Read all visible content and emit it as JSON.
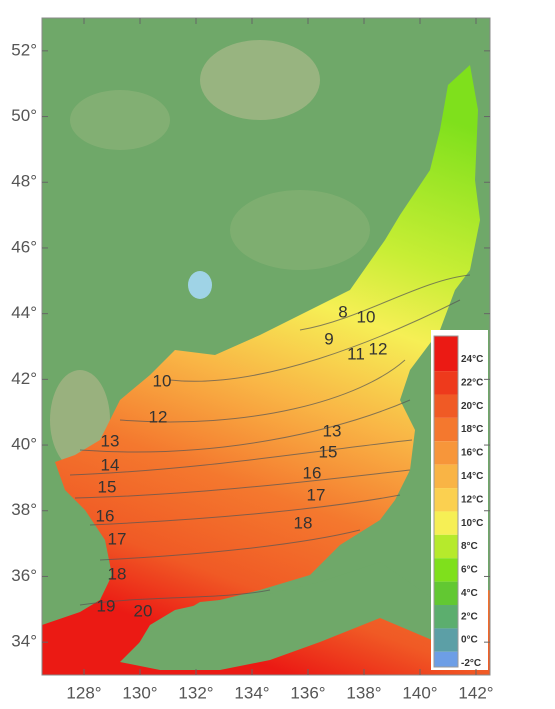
{
  "map": {
    "xticks": [
      {
        "value": 128,
        "label": "128°"
      },
      {
        "value": 130,
        "label": "130°"
      },
      {
        "value": 132,
        "label": "132°"
      },
      {
        "value": 134,
        "label": "134°"
      },
      {
        "value": 136,
        "label": "136°"
      },
      {
        "value": 138,
        "label": "138°"
      },
      {
        "value": 140,
        "label": "140°"
      },
      {
        "value": 142,
        "label": "142°"
      }
    ],
    "yticks": [
      {
        "value": 52,
        "label": "52°"
      },
      {
        "value": 50,
        "label": "50°"
      },
      {
        "value": 48,
        "label": "48°"
      },
      {
        "value": 46,
        "label": "46°"
      },
      {
        "value": 44,
        "label": "44°"
      },
      {
        "value": 42,
        "label": "42°"
      },
      {
        "value": 40,
        "label": "40°"
      },
      {
        "value": 38,
        "label": "38°"
      },
      {
        "value": 36,
        "label": "36°"
      },
      {
        "value": 34,
        "label": "34°"
      }
    ],
    "xlim": [
      126.5,
      142.5
    ],
    "ylim": [
      33,
      53
    ],
    "contour_labels": [
      8,
      9,
      10,
      11,
      12,
      10,
      12,
      13,
      13,
      14,
      15,
      15,
      16,
      17,
      16,
      17,
      18,
      18,
      19,
      20
    ],
    "legend": {
      "clim": [
        -2.3,
        26
      ],
      "ticks": [
        {
          "value": 24,
          "label": "24°C"
        },
        {
          "value": 22,
          "label": "22°C"
        },
        {
          "value": 20,
          "label": "20°C"
        },
        {
          "value": 18,
          "label": "18°C"
        },
        {
          "value": 16,
          "label": "16°C"
        },
        {
          "value": 14,
          "label": "14°C"
        },
        {
          "value": 12,
          "label": "12°C"
        },
        {
          "value": 10,
          "label": "10°C"
        },
        {
          "value": 8,
          "label": "8°C"
        },
        {
          "value": 6,
          "label": "6°C"
        },
        {
          "value": 4,
          "label": "4°C"
        },
        {
          "value": 2,
          "label": "2°C"
        },
        {
          "value": 0,
          "label": "0°C"
        },
        {
          "value": -2,
          "label": "-2°C"
        }
      ],
      "colors": [
        "#eb1a14",
        "#ee3a1c",
        "#f05a25",
        "#f4782e",
        "#f7963a",
        "#f9b445",
        "#fbd050",
        "#f6ef55",
        "#b6ea2c",
        "#7fe01c",
        "#62c832",
        "#5cae6e",
        "#5c9fa6",
        "#6d9ee6"
      ]
    }
  }
}
